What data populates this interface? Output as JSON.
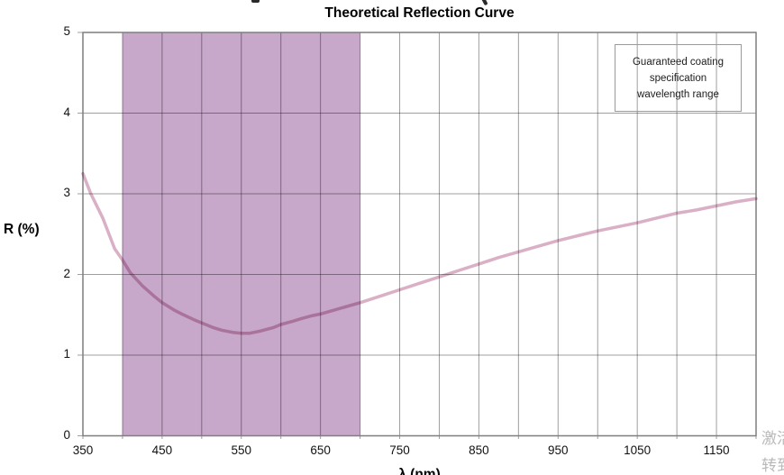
{
  "watermark": {
    "line1": "激活",
    "line2": "转到"
  },
  "chart_data": {
    "type": "line",
    "title": "Theoretical Reflection Curve",
    "xlabel": "λ (nm)",
    "ylabel": "R (%)",
    "xlim": [
      350,
      1200
    ],
    "ylim": [
      0,
      5
    ],
    "x_ticks": [
      350,
      450,
      550,
      650,
      750,
      850,
      950,
      1050,
      1150
    ],
    "y_ticks": [
      0,
      1,
      2,
      3,
      4,
      5
    ],
    "x_grid_step": 50,
    "grid": true,
    "colors": {
      "grid": "#9f9f9f",
      "border": "#7f7f7f",
      "band_fill": "#c7a7ca",
      "curve": "#d9b0c5"
    },
    "band": {
      "from": 400,
      "to": 700,
      "color": "#c7a7ca",
      "label": "Guaranteed coating specification wavelength range",
      "legend_position": "top-right"
    },
    "series": [
      {
        "color": "#d9b0c5",
        "x": [
          350,
          360,
          375,
          390,
          400,
          410,
          425,
          440,
          450,
          465,
          475,
          490,
          500,
          515,
          525,
          540,
          550,
          560,
          575,
          590,
          600,
          615,
          625,
          640,
          650,
          675,
          700,
          725,
          750,
          775,
          800,
          825,
          850,
          875,
          900,
          925,
          950,
          975,
          1000,
          1025,
          1050,
          1075,
          1100,
          1125,
          1150,
          1175,
          1200
        ],
        "y": [
          3.25,
          3.0,
          2.7,
          2.32,
          2.18,
          2.02,
          1.86,
          1.73,
          1.65,
          1.56,
          1.51,
          1.44,
          1.4,
          1.34,
          1.31,
          1.28,
          1.27,
          1.27,
          1.3,
          1.34,
          1.38,
          1.42,
          1.45,
          1.49,
          1.51,
          1.58,
          1.65,
          1.73,
          1.81,
          1.89,
          1.97,
          2.05,
          2.13,
          2.21,
          2.28,
          2.35,
          2.42,
          2.48,
          2.54,
          2.59,
          2.64,
          2.7,
          2.76,
          2.8,
          2.85,
          2.9,
          2.94
        ]
      }
    ]
  }
}
